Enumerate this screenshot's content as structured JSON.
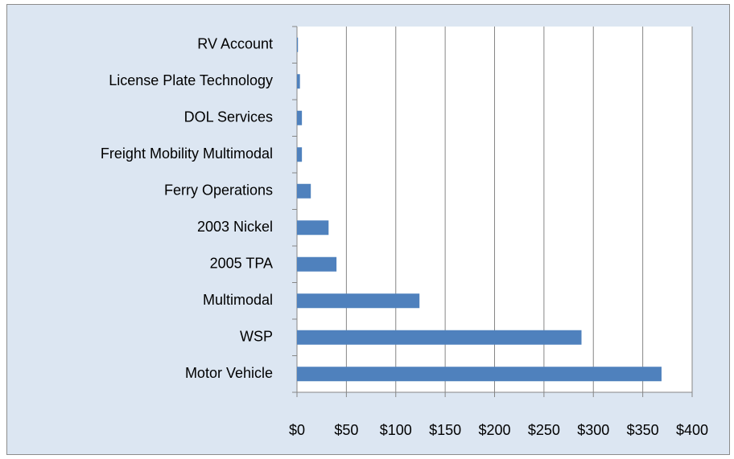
{
  "chart_data": {
    "type": "bar",
    "orientation": "horizontal",
    "categories": [
      "Motor Vehicle",
      "WSP",
      "Multimodal",
      "2005 TPA",
      "2003 Nickel",
      "Ferry Operations",
      "Freight Mobility Multimodal",
      "DOL Services",
      "License Plate Technology",
      "RV Account"
    ],
    "values": [
      369,
      288,
      124,
      40,
      32,
      14,
      5,
      5,
      3,
      1
    ],
    "color": "#4f81bd",
    "xlim": [
      0,
      400
    ],
    "xticks": [
      {
        "value": 0,
        "label": "$0"
      },
      {
        "value": 50,
        "label": "$50"
      },
      {
        "value": 100,
        "label": "$100"
      },
      {
        "value": 150,
        "label": "$150"
      },
      {
        "value": 200,
        "label": "$200"
      },
      {
        "value": 250,
        "label": "$250"
      },
      {
        "value": 300,
        "label": "$300"
      },
      {
        "value": 350,
        "label": "$350"
      },
      {
        "value": 400,
        "label": "$400"
      }
    ],
    "grid": true
  }
}
